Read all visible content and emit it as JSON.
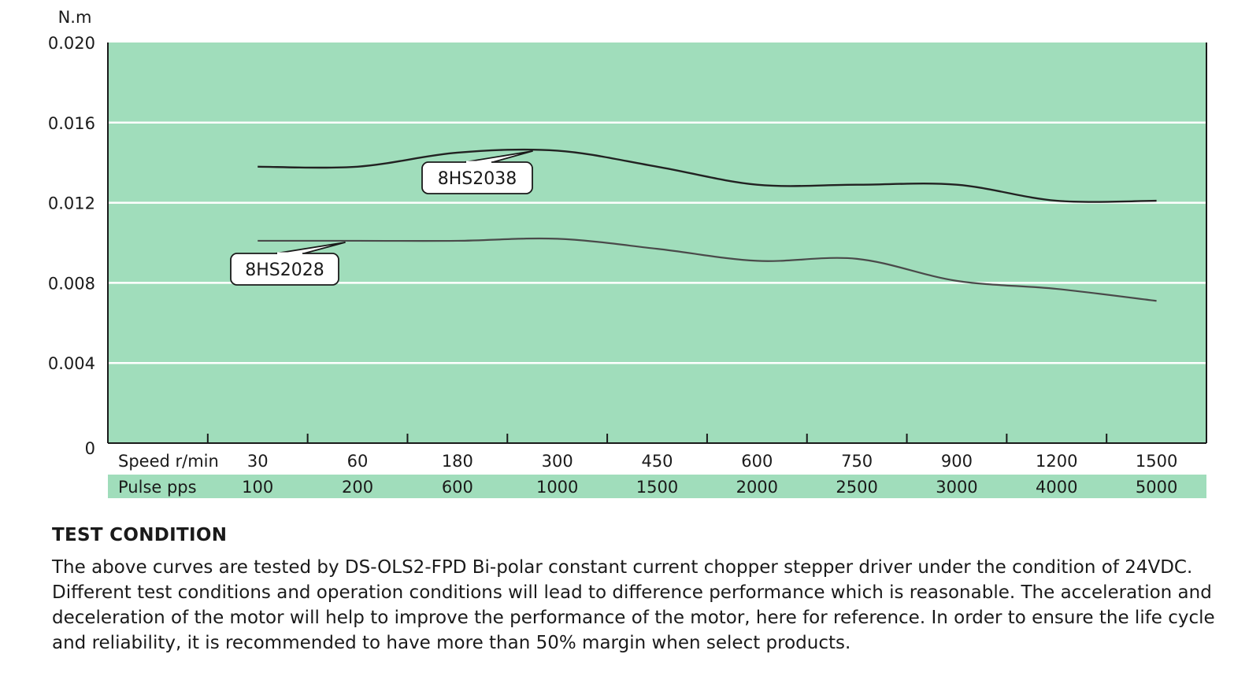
{
  "chart_data": {
    "type": "line",
    "ylabel": "N.m",
    "ylim": [
      0,
      0.02
    ],
    "y_ticks": [
      "0",
      "0.004",
      "0.008",
      "0.012",
      "0.016",
      "0.020"
    ],
    "x_rows": [
      {
        "label": "Speed r/min",
        "values": [
          "30",
          "60",
          "180",
          "300",
          "450",
          "600",
          "750",
          "900",
          "1200",
          "1500"
        ]
      },
      {
        "label": "Pulse pps",
        "values": [
          "100",
          "200",
          "600",
          "1000",
          "1500",
          "2000",
          "2500",
          "3000",
          "4000",
          "5000"
        ]
      }
    ],
    "grid": true,
    "colors": {
      "plot_bg": "#a0ddbb",
      "grid": "#ffffff",
      "line_8HS2038": "#222222",
      "line_8HS2028": "#4a4a4a"
    },
    "series": [
      {
        "name": "8HS2038",
        "x": [
          30,
          60,
          180,
          300,
          450,
          600,
          750,
          900,
          1200,
          1500
        ],
        "values": [
          0.0138,
          0.0138,
          0.0145,
          0.0146,
          0.0138,
          0.0129,
          0.0129,
          0.0129,
          0.0121,
          0.0121
        ]
      },
      {
        "name": "8HS2028",
        "x": [
          30,
          60,
          180,
          300,
          450,
          600,
          750,
          900,
          1200,
          1500
        ],
        "values": [
          0.0101,
          0.0101,
          0.0101,
          0.0102,
          0.0097,
          0.0091,
          0.0092,
          0.0081,
          0.0077,
          0.0071
        ]
      }
    ]
  },
  "test_condition": {
    "title": "TEST CONDITION",
    "body": "The above curves are tested by DS-OLS2-FPD Bi-polar constant current chopper stepper driver under the condition of 24VDC. Different test conditions and operation conditions will lead to difference performance which is reasonable. The acceleration and deceleration of the motor will help to improve the performance of the motor, here for reference. In order to ensure the life cycle and reliability, it is recommended to have more than 50% margin when select products."
  }
}
